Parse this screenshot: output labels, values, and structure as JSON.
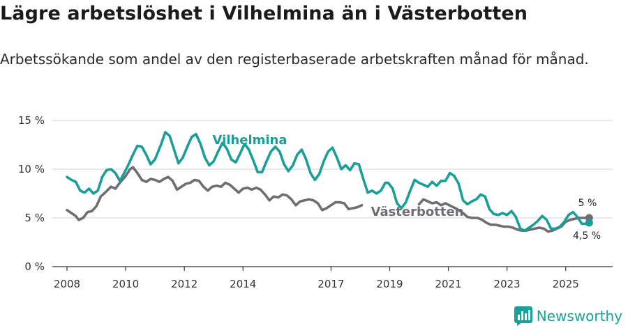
{
  "chart_data": {
    "type": "line",
    "title": "Lägre arbetslöshet i Vilhelmina än i Västerbotten",
    "subtitle": "Arbetssökande som andel av den registerbaserade arbetskraften månad för månad.",
    "xlim": [
      2007.5,
      2026.6
    ],
    "ylim": [
      0,
      15
    ],
    "yticks": [
      0,
      5,
      10,
      15
    ],
    "ytick_labels": [
      "0 %",
      "5 %",
      "10 %",
      "15 %"
    ],
    "xticks": [
      2008,
      2010,
      2012,
      2014,
      2017,
      2019,
      2021,
      2023,
      2025
    ],
    "xtick_labels": [
      "2008",
      "2010",
      "2012",
      "2014",
      "2017",
      "2019",
      "2021",
      "2023",
      "2025"
    ],
    "grid": true,
    "series": [
      {
        "name": "Vilhelmina",
        "color": "#1a9e98",
        "points": [
          [
            2008.0,
            9.2
          ],
          [
            2008.15,
            8.9
          ],
          [
            2008.3,
            8.7
          ],
          [
            2008.45,
            7.8
          ],
          [
            2008.6,
            7.6
          ],
          [
            2008.75,
            8.0
          ],
          [
            2008.9,
            7.5
          ],
          [
            2009.05,
            7.8
          ],
          [
            2009.2,
            9.2
          ],
          [
            2009.35,
            9.9
          ],
          [
            2009.5,
            10.0
          ],
          [
            2009.65,
            9.6
          ],
          [
            2009.8,
            8.8
          ],
          [
            2009.95,
            9.6
          ],
          [
            2010.1,
            10.5
          ],
          [
            2010.25,
            11.5
          ],
          [
            2010.4,
            12.4
          ],
          [
            2010.55,
            12.3
          ],
          [
            2010.7,
            11.5
          ],
          [
            2010.85,
            10.5
          ],
          [
            2011.0,
            11.0
          ],
          [
            2011.2,
            12.5
          ],
          [
            2011.35,
            13.8
          ],
          [
            2011.5,
            13.4
          ],
          [
            2011.65,
            12.0
          ],
          [
            2011.8,
            10.6
          ],
          [
            2011.95,
            11.2
          ],
          [
            2012.1,
            12.3
          ],
          [
            2012.25,
            13.3
          ],
          [
            2012.4,
            13.6
          ],
          [
            2012.55,
            12.6
          ],
          [
            2012.7,
            11.2
          ],
          [
            2012.85,
            10.4
          ],
          [
            2013.0,
            10.8
          ],
          [
            2013.15,
            11.8
          ],
          [
            2013.3,
            12.7
          ],
          [
            2013.45,
            12.1
          ],
          [
            2013.6,
            11.0
          ],
          [
            2013.75,
            10.7
          ],
          [
            2013.9,
            11.6
          ],
          [
            2014.05,
            12.6
          ],
          [
            2014.2,
            12.0
          ],
          [
            2014.35,
            10.9
          ],
          [
            2014.5,
            9.7
          ],
          [
            2014.65,
            9.7
          ],
          [
            2014.8,
            10.8
          ],
          [
            2014.95,
            11.8
          ],
          [
            2015.1,
            12.3
          ],
          [
            2015.25,
            11.8
          ],
          [
            2015.4,
            10.5
          ],
          [
            2015.55,
            9.8
          ],
          [
            2015.7,
            10.4
          ],
          [
            2015.85,
            11.5
          ],
          [
            2016.0,
            12.0
          ],
          [
            2016.15,
            11.0
          ],
          [
            2016.3,
            9.6
          ],
          [
            2016.45,
            8.9
          ],
          [
            2016.6,
            9.5
          ],
          [
            2016.75,
            10.8
          ],
          [
            2016.9,
            11.8
          ],
          [
            2017.05,
            12.2
          ],
          [
            2017.2,
            11.2
          ],
          [
            2017.35,
            10.0
          ],
          [
            2017.5,
            10.4
          ],
          [
            2017.65,
            9.9
          ],
          [
            2017.8,
            10.6
          ],
          [
            2017.95,
            10.5
          ],
          [
            2018.1,
            9.0
          ],
          [
            2018.25,
            7.6
          ],
          [
            2018.4,
            7.8
          ],
          [
            2018.55,
            7.5
          ],
          [
            2018.7,
            7.8
          ],
          [
            2018.85,
            8.6
          ],
          [
            2018.95,
            8.6
          ],
          [
            2019.1,
            8.0
          ],
          [
            2019.25,
            6.5
          ],
          [
            2019.4,
            6.0
          ],
          [
            2019.55,
            6.6
          ],
          [
            2019.7,
            7.8
          ],
          [
            2019.85,
            8.9
          ],
          [
            2020.0,
            8.6
          ],
          [
            2020.15,
            8.4
          ],
          [
            2020.3,
            8.2
          ],
          [
            2020.45,
            8.7
          ],
          [
            2020.6,
            8.3
          ],
          [
            2020.75,
            8.8
          ],
          [
            2020.9,
            8.8
          ],
          [
            2021.05,
            9.6
          ],
          [
            2021.2,
            9.3
          ],
          [
            2021.35,
            8.5
          ],
          [
            2021.5,
            6.8
          ],
          [
            2021.65,
            6.4
          ],
          [
            2021.8,
            6.7
          ],
          [
            2021.95,
            6.9
          ],
          [
            2022.1,
            7.4
          ],
          [
            2022.25,
            7.2
          ],
          [
            2022.4,
            5.9
          ],
          [
            2022.55,
            5.4
          ],
          [
            2022.7,
            5.3
          ],
          [
            2022.85,
            5.5
          ],
          [
            2023.0,
            5.3
          ],
          [
            2023.15,
            5.7
          ],
          [
            2023.3,
            5.1
          ],
          [
            2023.45,
            3.9
          ],
          [
            2023.6,
            3.7
          ],
          [
            2023.75,
            4.0
          ],
          [
            2023.9,
            4.3
          ],
          [
            2024.05,
            4.7
          ],
          [
            2024.2,
            5.2
          ],
          [
            2024.35,
            4.8
          ],
          [
            2024.5,
            3.9
          ],
          [
            2024.65,
            3.9
          ],
          [
            2024.8,
            4.1
          ],
          [
            2024.95,
            4.6
          ],
          [
            2025.1,
            5.3
          ],
          [
            2025.25,
            5.6
          ],
          [
            2025.4,
            5.1
          ],
          [
            2025.55,
            4.4
          ],
          [
            2025.7,
            4.4
          ],
          [
            2025.8,
            4.5
          ]
        ],
        "label": "Vilhelmina",
        "end_value_label": "4,5 %"
      },
      {
        "name": "Västerbotten",
        "color": "#6f6d72",
        "points": [
          [
            2008.0,
            5.8
          ],
          [
            2008.15,
            5.5
          ],
          [
            2008.3,
            5.2
          ],
          [
            2008.4,
            4.8
          ],
          [
            2008.55,
            5.0
          ],
          [
            2008.7,
            5.6
          ],
          [
            2008.85,
            5.7
          ],
          [
            2009.0,
            6.2
          ],
          [
            2009.15,
            7.2
          ],
          [
            2009.3,
            7.6
          ],
          [
            2009.5,
            8.2
          ],
          [
            2009.65,
            8.0
          ],
          [
            2009.8,
            8.6
          ],
          [
            2010.0,
            9.3
          ],
          [
            2010.15,
            10.0
          ],
          [
            2010.25,
            10.2
          ],
          [
            2010.4,
            9.6
          ],
          [
            2010.55,
            8.9
          ],
          [
            2010.7,
            8.7
          ],
          [
            2010.85,
            9.0
          ],
          [
            2011.0,
            8.9
          ],
          [
            2011.15,
            8.7
          ],
          [
            2011.3,
            9.0
          ],
          [
            2011.45,
            9.2
          ],
          [
            2011.6,
            8.8
          ],
          [
            2011.75,
            7.9
          ],
          [
            2011.9,
            8.2
          ],
          [
            2012.05,
            8.5
          ],
          [
            2012.2,
            8.6
          ],
          [
            2012.35,
            8.9
          ],
          [
            2012.5,
            8.8
          ],
          [
            2012.65,
            8.2
          ],
          [
            2012.8,
            7.8
          ],
          [
            2012.95,
            8.2
          ],
          [
            2013.1,
            8.3
          ],
          [
            2013.25,
            8.2
          ],
          [
            2013.4,
            8.6
          ],
          [
            2013.55,
            8.4
          ],
          [
            2013.7,
            8.0
          ],
          [
            2013.85,
            7.6
          ],
          [
            2014.0,
            8.0
          ],
          [
            2014.15,
            8.1
          ],
          [
            2014.3,
            7.9
          ],
          [
            2014.45,
            8.1
          ],
          [
            2014.6,
            7.9
          ],
          [
            2014.75,
            7.4
          ],
          [
            2014.9,
            6.8
          ],
          [
            2015.05,
            7.2
          ],
          [
            2015.2,
            7.1
          ],
          [
            2015.35,
            7.4
          ],
          [
            2015.5,
            7.3
          ],
          [
            2015.65,
            6.9
          ],
          [
            2015.8,
            6.3
          ],
          [
            2015.95,
            6.7
          ],
          [
            2016.1,
            6.8
          ],
          [
            2016.25,
            6.9
          ],
          [
            2016.4,
            6.8
          ],
          [
            2016.55,
            6.5
          ],
          [
            2016.7,
            5.8
          ],
          [
            2016.85,
            6.0
          ],
          [
            2017.0,
            6.3
          ],
          [
            2017.15,
            6.6
          ],
          [
            2017.3,
            6.6
          ],
          [
            2017.45,
            6.5
          ],
          [
            2017.6,
            5.9
          ],
          [
            2017.75,
            6.0
          ],
          [
            2017.9,
            6.1
          ],
          [
            2018.05,
            6.3
          ],
          [
            2020.0,
            6.4
          ],
          [
            2020.15,
            6.9
          ],
          [
            2020.3,
            6.7
          ],
          [
            2020.45,
            6.5
          ],
          [
            2020.6,
            6.6
          ],
          [
            2020.75,
            6.3
          ],
          [
            2020.9,
            6.5
          ],
          [
            2021.1,
            6.2
          ],
          [
            2021.3,
            5.9
          ],
          [
            2021.5,
            5.5
          ],
          [
            2021.65,
            5.1
          ],
          [
            2021.8,
            5.0
          ],
          [
            2022.0,
            5.0
          ],
          [
            2022.15,
            4.8
          ],
          [
            2022.3,
            4.5
          ],
          [
            2022.45,
            4.3
          ],
          [
            2022.6,
            4.3
          ],
          [
            2022.75,
            4.2
          ],
          [
            2022.9,
            4.1
          ],
          [
            2023.05,
            4.1
          ],
          [
            2023.2,
            4.0
          ],
          [
            2023.35,
            3.8
          ],
          [
            2023.5,
            3.7
          ],
          [
            2023.65,
            3.7
          ],
          [
            2023.8,
            3.8
          ],
          [
            2023.95,
            3.9
          ],
          [
            2024.1,
            4.0
          ],
          [
            2024.25,
            3.9
          ],
          [
            2024.4,
            3.6
          ],
          [
            2024.55,
            3.7
          ],
          [
            2024.7,
            3.9
          ],
          [
            2024.85,
            4.1
          ],
          [
            2025.0,
            4.6
          ],
          [
            2025.15,
            4.8
          ],
          [
            2025.3,
            4.9
          ],
          [
            2025.45,
            5.0
          ],
          [
            2025.6,
            5.0
          ],
          [
            2025.8,
            5.0
          ]
        ],
        "label": "Västerbotten",
        "end_value_label": "5 %"
      }
    ]
  },
  "brand": {
    "name": "Newsworthy",
    "color": "#17a29b",
    "icon": "bar-chart-logo-icon"
  }
}
